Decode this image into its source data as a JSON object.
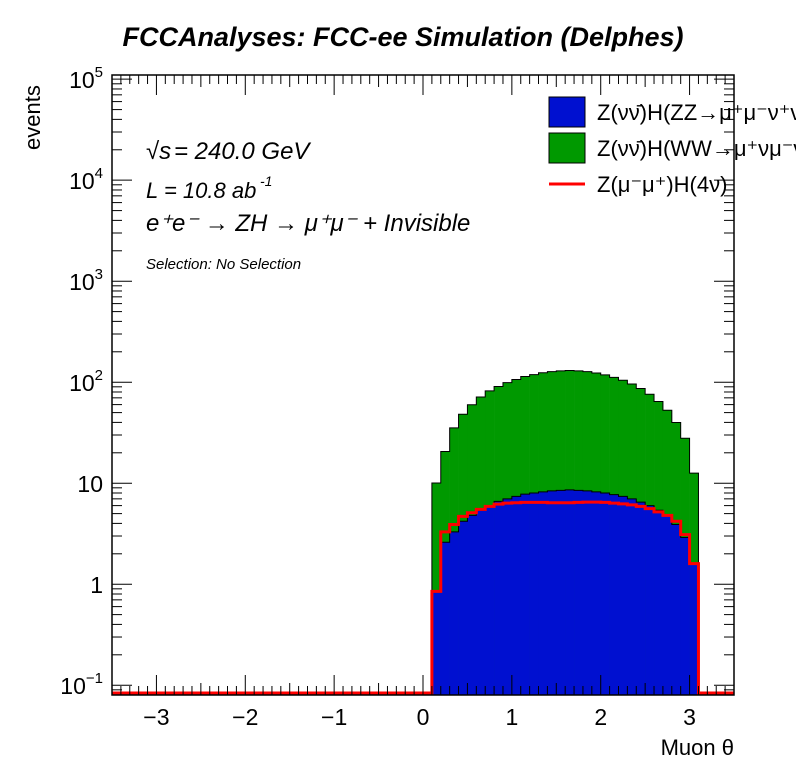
{
  "chart_data": {
    "type": "bar",
    "title": "FCCAnalyses: FCC-ee Simulation (Delphes)",
    "xlabel": "Muon θ",
    "ylabel": "events",
    "x_range": [
      -3.5,
      3.5
    ],
    "ylim": [
      0.08,
      110000
    ],
    "y_scale": "log",
    "stacked": true,
    "x_ticks": [
      "−3",
      "−2",
      "−1",
      "0",
      "1",
      "2",
      "3"
    ],
    "y_ticks": [
      {
        "value": 0.1,
        "base": "10",
        "exp": "−1"
      },
      {
        "value": 1,
        "base": "1",
        "exp": ""
      },
      {
        "value": 10,
        "base": "10",
        "exp": ""
      },
      {
        "value": 100,
        "base": "10",
        "exp": "2"
      },
      {
        "value": 1000,
        "base": "10",
        "exp": "3"
      },
      {
        "value": 10000,
        "base": "10",
        "exp": "4"
      },
      {
        "value": 100000,
        "base": "10",
        "exp": "5"
      }
    ],
    "bins": {
      "low_edges": [
        0.1,
        0.2,
        0.3,
        0.4,
        0.5,
        0.6,
        0.7,
        0.8,
        0.9,
        1.0,
        1.1,
        1.2,
        1.3,
        1.4,
        1.5,
        1.6,
        1.7,
        1.8,
        1.9,
        2.0,
        2.1,
        2.2,
        2.3,
        2.4,
        2.5,
        2.6,
        2.7,
        2.8,
        2.9,
        3.0
      ]
    },
    "series": [
      {
        "name": "Z(νν̄)H(ZZ→μ⁺μ⁻ν⁺ν⁻)",
        "style": "fill",
        "color": "#0010d0",
        "values": [
          0.85,
          2.6,
          3.3,
          4.2,
          4.8,
          5.4,
          6.0,
          6.6,
          7.0,
          7.4,
          7.8,
          8.0,
          8.2,
          8.4,
          8.5,
          8.6,
          8.5,
          8.4,
          8.2,
          8.0,
          7.7,
          7.4,
          7.0,
          6.5,
          6.0,
          5.4,
          4.8,
          3.9,
          2.9,
          1.6
        ]
      },
      {
        "name": "Z(νν̄)H(WW→μ⁺νμ⁻ν̄)",
        "style": "fill",
        "color": "#009900",
        "values": [
          9.2,
          18,
          32,
          44,
          55,
          66,
          76,
          84,
          92,
          99,
          106,
          111,
          116,
          119,
          121,
          122,
          121,
          119,
          115,
          110,
          104,
          97,
          89,
          80,
          70,
          59,
          48,
          36,
          25,
          11
        ]
      },
      {
        "name": "Z(μ⁻μ⁺)H(4ν)",
        "style": "line",
        "color": "#ff0000",
        "values": [
          0.85,
          3.3,
          3.9,
          4.7,
          5.1,
          5.5,
          5.9,
          6.2,
          6.35,
          6.4,
          6.45,
          6.45,
          6.45,
          6.4,
          6.4,
          6.4,
          6.45,
          6.5,
          6.5,
          6.45,
          6.35,
          6.25,
          6.1,
          5.9,
          5.6,
          5.2,
          4.8,
          4.2,
          3.1,
          1.6
        ]
      }
    ],
    "legend_position": "top-right",
    "annotations": {
      "energy_lhs": "√s",
      "energy_rhs": " = 240.0 GeV",
      "lumi_text": "L = 10.8 ab",
      "lumi_exp": "-1",
      "process_text": "e⁺e⁻ → ZH → μ⁺μ⁻ + Invisible",
      "selection": "Selection: No Selection"
    }
  }
}
